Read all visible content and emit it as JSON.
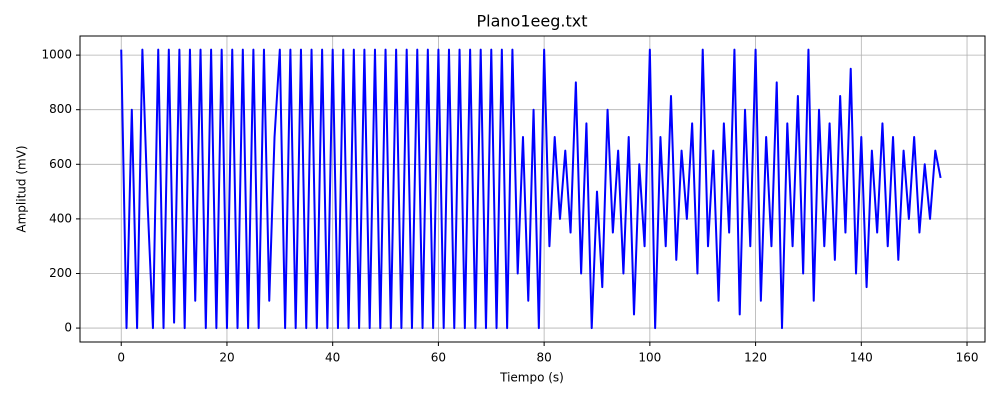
{
  "chart_data": {
    "type": "line",
    "title": "Plano1eeg.txt",
    "xlabel": "Tiempo (s)",
    "ylabel": "Amplitud (mV)",
    "color": "#0000ff",
    "grid": true,
    "xlim": [
      -7.8,
      163.4
    ],
    "ylim": [
      -51,
      1070
    ],
    "xticks": [
      0,
      20,
      40,
      60,
      80,
      100,
      120,
      140,
      160
    ],
    "yticks": [
      0,
      200,
      400,
      600,
      800,
      1000
    ],
    "x": [
      0,
      1,
      2,
      3,
      4,
      5,
      6,
      7,
      8,
      9,
      10,
      11,
      12,
      13,
      14,
      15,
      16,
      17,
      18,
      19,
      20,
      21,
      22,
      23,
      24,
      25,
      26,
      27,
      28,
      29,
      30,
      31,
      32,
      33,
      34,
      35,
      36,
      37,
      38,
      39,
      40,
      41,
      42,
      43,
      44,
      45,
      46,
      47,
      48,
      49,
      50,
      51,
      52,
      53,
      54,
      55,
      56,
      57,
      58,
      59,
      60,
      61,
      62,
      63,
      64,
      65,
      66,
      67,
      68,
      69,
      70,
      71,
      72,
      73,
      74,
      75,
      76,
      77,
      78,
      79,
      80,
      81,
      82,
      83,
      84,
      85,
      86,
      87,
      88,
      89,
      90,
      91,
      92,
      93,
      94,
      95,
      96,
      97,
      98,
      99,
      100,
      101,
      102,
      103,
      104,
      105,
      106,
      107,
      108,
      109,
      110,
      111,
      112,
      113,
      114,
      115,
      116,
      117,
      118,
      119,
      120,
      121,
      122,
      123,
      124,
      125,
      126,
      127,
      128,
      129,
      130,
      131,
      132,
      133,
      134,
      135,
      136,
      137,
      138,
      139,
      140,
      141,
      142,
      143,
      144,
      145,
      146,
      147,
      148,
      149,
      150,
      151,
      152,
      153,
      154,
      155
    ],
    "values": [
      1020,
      0,
      800,
      0,
      1020,
      450,
      0,
      1020,
      0,
      1020,
      20,
      1020,
      0,
      1020,
      100,
      1020,
      0,
      1020,
      0,
      1020,
      0,
      1020,
      0,
      1020,
      0,
      1020,
      0,
      1020,
      100,
      700,
      1020,
      0,
      1020,
      0,
      1020,
      0,
      1020,
      0,
      1020,
      0,
      1020,
      0,
      1020,
      0,
      1020,
      0,
      1020,
      0,
      1020,
      0,
      1020,
      0,
      1020,
      0,
      1020,
      0,
      1020,
      0,
      1020,
      0,
      1020,
      0,
      1020,
      0,
      1020,
      0,
      1020,
      0,
      1020,
      0,
      1020,
      0,
      1020,
      0,
      1020,
      200,
      700,
      100,
      800,
      0,
      1020,
      300,
      700,
      400,
      650,
      350,
      900,
      200,
      750,
      0,
      500,
      150,
      800,
      350,
      650,
      200,
      700,
      50,
      600,
      300,
      1020,
      0,
      700,
      300,
      850,
      250,
      650,
      400,
      750,
      200,
      1020,
      300,
      650,
      100,
      750,
      350,
      1020,
      50,
      800,
      300,
      1020,
      100,
      700,
      300,
      900,
      0,
      750,
      300,
      850,
      200,
      1020,
      100,
      800,
      300,
      750,
      250,
      850,
      350,
      950,
      200,
      700,
      150,
      650,
      350,
      750,
      300,
      700,
      250,
      650,
      400,
      700,
      350,
      600,
      400,
      650,
      550
    ]
  }
}
